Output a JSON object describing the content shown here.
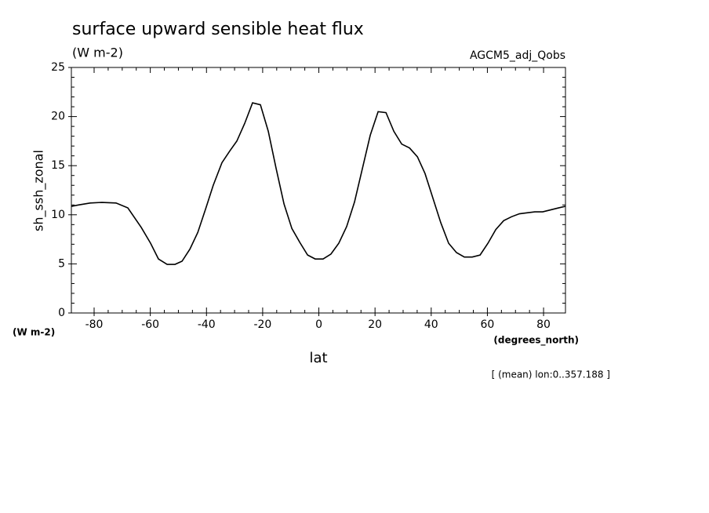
{
  "chart_data": {
    "type": "line",
    "title": "surface upward sensible heat flux",
    "subtitle": "(W m-2)",
    "dataset": "AGCM5_adj_Qobs",
    "y_label": "sh_ssh_zonal",
    "y_units": "(W m-2)",
    "x_label": "lat",
    "x_units": "(degrees_north)",
    "note": "[ (mean) lon:0..357.188 ]",
    "x": [
      -88.1,
      -85.6,
      -81.4,
      -77.2,
      -72.2,
      -68.0,
      -63.2,
      -59.9,
      -57.1,
      -54.0,
      -51.2,
      -48.7,
      -45.9,
      -43.1,
      -40.3,
      -37.6,
      -34.5,
      -31.7,
      -29.2,
      -26.4,
      -23.6,
      -20.8,
      -18.0,
      -15.2,
      -12.4,
      -9.6,
      -6.8,
      -4.0,
      -1.3,
      1.5,
      4.3,
      7.1,
      9.9,
      12.7,
      15.5,
      18.3,
      21.1,
      23.9,
      26.7,
      29.5,
      32.3,
      35.1,
      37.8,
      40.6,
      43.4,
      46.2,
      49.0,
      51.8,
      54.6,
      57.4,
      60.2,
      63.0,
      65.8,
      68.6,
      71.4,
      74.1,
      76.9,
      79.7,
      82.5,
      85.3,
      87.8
    ],
    "series": [
      {
        "name": "sh_ssh_zonal",
        "color": "#000000",
        "values": [
          10.86,
          11.0,
          11.2,
          11.26,
          11.2,
          10.7,
          8.7,
          7.1,
          5.5,
          4.95,
          4.95,
          5.27,
          6.5,
          8.2,
          10.6,
          13.0,
          15.3,
          16.5,
          17.5,
          19.3,
          21.4,
          21.2,
          18.5,
          14.7,
          11.1,
          8.6,
          7.2,
          5.9,
          5.5,
          5.5,
          6.0,
          7.1,
          8.8,
          11.3,
          14.7,
          18.1,
          20.5,
          20.4,
          18.5,
          17.2,
          16.8,
          15.9,
          14.2,
          11.7,
          9.2,
          7.1,
          6.15,
          5.7,
          5.7,
          5.9,
          7.1,
          8.5,
          9.4,
          9.8,
          10.1,
          10.2,
          10.3,
          10.3,
          10.5,
          10.7,
          10.86
        ]
      }
    ],
    "xlim": [
      -88.1,
      87.8
    ],
    "ylim": [
      0,
      25
    ],
    "xticks": [
      -80,
      -60,
      -40,
      -20,
      0,
      20,
      40,
      60,
      80
    ],
    "yticks": [
      0,
      5,
      10,
      15,
      20,
      25
    ]
  }
}
